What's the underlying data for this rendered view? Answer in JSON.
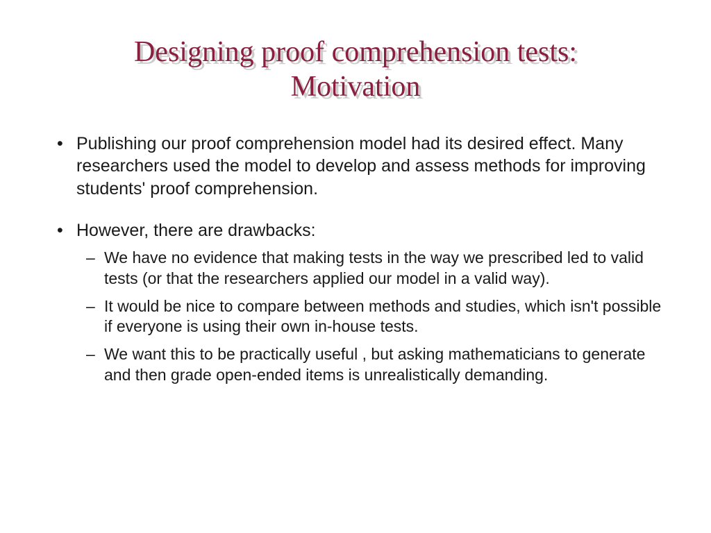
{
  "title": {
    "line1": "Designing proof comprehension tests:",
    "line2": "Motivation",
    "color": "#8b1f3f",
    "shadow_color": "#cccccc",
    "fontsize": 42
  },
  "bullets": [
    {
      "text": "Publishing our proof comprehension model had its desired effect. Many researchers used the model to develop and assess methods for improving students' proof comprehension."
    },
    {
      "text": "However, there are drawbacks:",
      "sub": [
        "We have no evidence that making tests in the way we prescribed led to valid tests (or that the researchers applied our model in a valid way).",
        "It would be nice to compare between methods and studies, which isn't possible if everyone is using their own in-house tests.",
        "We want this to be practically useful , but asking mathematicians to generate and then grade open-ended items is unrealistically demanding."
      ]
    }
  ],
  "body_fontsize": 25,
  "sub_fontsize": 23,
  "text_color": "#1a1a1a",
  "background_color": "#ffffff"
}
